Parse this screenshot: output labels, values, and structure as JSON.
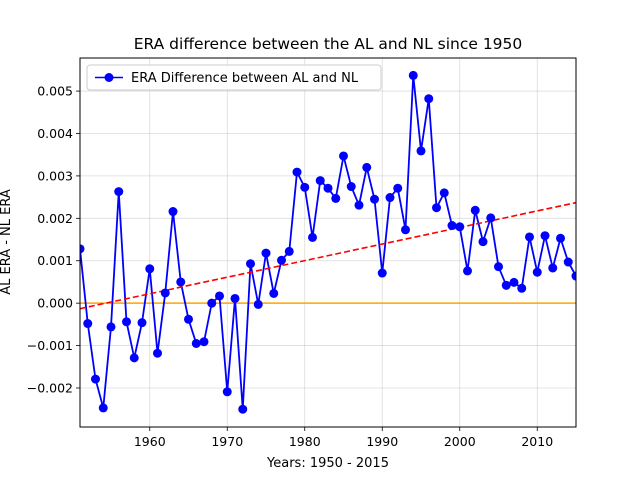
{
  "chart_data": {
    "type": "line",
    "title": "ERA difference between the AL and NL since 1950",
    "xlabel": "Years:   1950 - 2015",
    "ylabel": "AL ERA - NL ERA",
    "xlim": [
      1951,
      2015
    ],
    "ylim": [
      -0.00292,
      0.00578
    ],
    "x_ticks": [
      1960,
      1970,
      1980,
      1990,
      2000,
      2010
    ],
    "x_tick_labels": [
      "1960",
      "1970",
      "1980",
      "1990",
      "2000",
      "2010"
    ],
    "y_ticks": [
      -0.002,
      -0.001,
      0.0,
      0.001,
      0.002,
      0.003,
      0.004,
      0.005
    ],
    "y_tick_labels": [
      "−0.002",
      "−0.001",
      "0.000",
      "0.001",
      "0.002",
      "0.003",
      "0.004",
      "0.005"
    ],
    "grid": true,
    "legend_position": "upper-left",
    "series": [
      {
        "name": "ERA Difference between AL and NL",
        "color": "#0000ff",
        "marker": "circle",
        "x": [
          1951,
          1952,
          1953,
          1954,
          1955,
          1956,
          1957,
          1958,
          1959,
          1960,
          1961,
          1962,
          1963,
          1964,
          1965,
          1966,
          1967,
          1968,
          1969,
          1970,
          1971,
          1972,
          1973,
          1974,
          1975,
          1976,
          1977,
          1978,
          1979,
          1980,
          1981,
          1982,
          1983,
          1984,
          1985,
          1986,
          1987,
          1988,
          1989,
          1990,
          1991,
          1992,
          1993,
          1994,
          1995,
          1996,
          1997,
          1998,
          1999,
          2000,
          2001,
          2002,
          2003,
          2004,
          2005,
          2006,
          2007,
          2008,
          2009,
          2010,
          2011,
          2012,
          2013,
          2014,
          2015
        ],
        "y": [
          0.00128,
          -0.00048,
          -0.00179,
          -0.00247,
          -0.00056,
          0.00263,
          -0.00044,
          -0.00129,
          -0.00046,
          0.00081,
          -0.00118,
          0.00024,
          0.00216,
          0.0005,
          -0.00038,
          -0.00095,
          -0.00091,
          0.0,
          0.00017,
          -0.00209,
          0.00011,
          -0.0025,
          0.00093,
          -3e-05,
          0.00118,
          0.00023,
          0.00101,
          0.00122,
          0.00309,
          0.00273,
          0.00155,
          0.00289,
          0.00271,
          0.00247,
          0.00347,
          0.00275,
          0.00231,
          0.0032,
          0.00245,
          0.00071,
          0.00249,
          0.00271,
          0.00173,
          0.00537,
          0.00359,
          0.00482,
          0.00225,
          0.0026,
          0.00183,
          0.0018,
          0.00076,
          0.00219,
          0.00145,
          0.00201,
          0.00086,
          0.00042,
          0.00049,
          0.00035,
          0.00156,
          0.00073,
          0.00159,
          0.00083,
          0.00153,
          0.00097,
          0.00064
        ]
      }
    ],
    "trend_line": {
      "color": "#ff0000",
      "style": "dashed",
      "x": [
        1951,
        2015
      ],
      "y": [
        -0.00013,
        0.00237
      ]
    },
    "zero_line": {
      "color": "#ffa500",
      "y": 0.0
    }
  }
}
